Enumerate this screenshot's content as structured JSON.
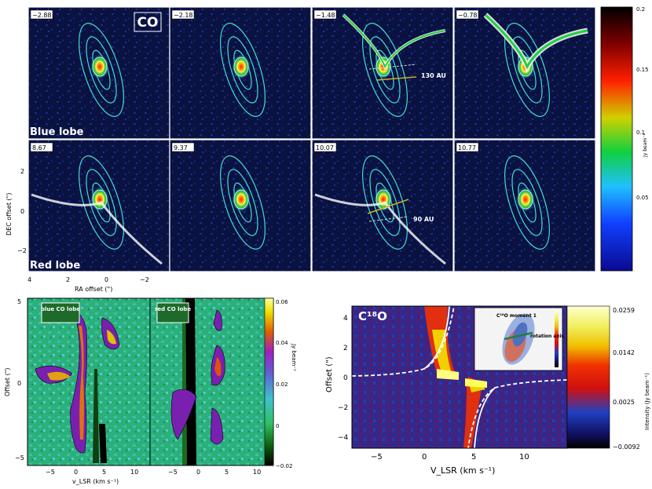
{
  "figure": {
    "channel_panels": {
      "molecule_label": "CO",
      "velocities": [
        "−2.88",
        "−2.18",
        "−1.48",
        "−0.78",
        "8.67",
        "9.37",
        "10.07",
        "10.77"
      ],
      "row_labels": [
        "Blue lobe",
        "Red lobe"
      ],
      "scale_130": "130 AU",
      "scale_90": "90 AU",
      "x_axis_label": "RA offset (\")",
      "y_axis_label": "DEC offset (\")",
      "x_ticks": [
        "4",
        "2",
        "0",
        "−2"
      ],
      "y_ticks": [
        "2",
        "0",
        "−2"
      ],
      "colorbar_ticks": [
        "0.2",
        "0.15",
        "0.1",
        "0.05"
      ],
      "colorbar_unit": "Jy beam⁻¹"
    },
    "pv_co": {
      "panel_labels": [
        "blue CO lobe",
        "red CO lobe"
      ],
      "y_axis_label": "Offset (\")",
      "x_axis_label": "v_LSR (km s⁻¹)",
      "x_ticks": [
        "−5",
        "0",
        "5",
        "10"
      ],
      "y_ticks": [
        "5",
        "0",
        "−5"
      ],
      "colorbar_ticks": [
        "0.06",
        "0.04",
        "0.02",
        "0",
        "−0.02"
      ],
      "colorbar_unit": "Jy beam⁻¹"
    },
    "pv_c18o": {
      "molecule_label": "C¹⁸O",
      "inset_title": "C¹⁸O moment 1",
      "inset_annotation": "rotation axis",
      "y_axis_label": "Offset (\")",
      "x_axis_label": "V_LSR (km s⁻¹)",
      "x_ticks": [
        "−5",
        "0",
        "5",
        "10"
      ],
      "y_ticks": [
        "4",
        "2",
        "0",
        "−2",
        "−4"
      ],
      "colorbar_ticks": [
        "0.0259",
        "0.0142",
        "0.0025",
        "−0.0092"
      ],
      "colorbar_label": "Intensity (Jy beam⁻¹)"
    }
  },
  "chart_data": [
    {
      "type": "heatmap",
      "description_label": "CO channel maps",
      "xlabel": "RA offset (\")",
      "ylabel": "DEC offset (\")",
      "xlim": [
        4,
        -2.5
      ],
      "ylim": [
        -3,
        3
      ],
      "channels_kms": [
        -2.88,
        -2.18,
        -1.48,
        -0.78,
        8.67,
        9.37,
        10.07,
        10.77
      ],
      "colorbar_range": [
        0,
        0.2
      ],
      "colorbar_unit": "Jy beam⁻¹",
      "colormap": "blue-cyan-green-yellow-red-black"
    },
    {
      "type": "heatmap",
      "description_label": "CO position-velocity",
      "xlabel": "v_LSR (km s⁻¹)",
      "ylabel": "Offset (\")",
      "xlim": [
        -7,
        13
      ],
      "ylim": [
        -5.5,
        5.5
      ],
      "colorbar_range": [
        -0.02,
        0.06
      ],
      "colorbar_unit": "Jy beam⁻¹"
    },
    {
      "type": "heatmap",
      "description_label": "C18O position-velocity",
      "xlabel": "V_LSR (km s⁻¹)",
      "ylabel": "Offset (\")",
      "xlim": [
        -7,
        14
      ],
      "ylim": [
        -4.8,
        4.8
      ],
      "colorbar_range": [
        -0.0092,
        0.0259
      ],
      "colorbar_unit": "Jy beam⁻¹",
      "systemic_velocity_kms": 3.9
    }
  ],
  "colors": {
    "channel_bg": "#0a1240",
    "contour_cyan": "#3fe0d0",
    "pv_green_bg": "#2bb07a",
    "c18o_bg": "#3a2a8a",
    "label_green": "#1e6a2a"
  }
}
